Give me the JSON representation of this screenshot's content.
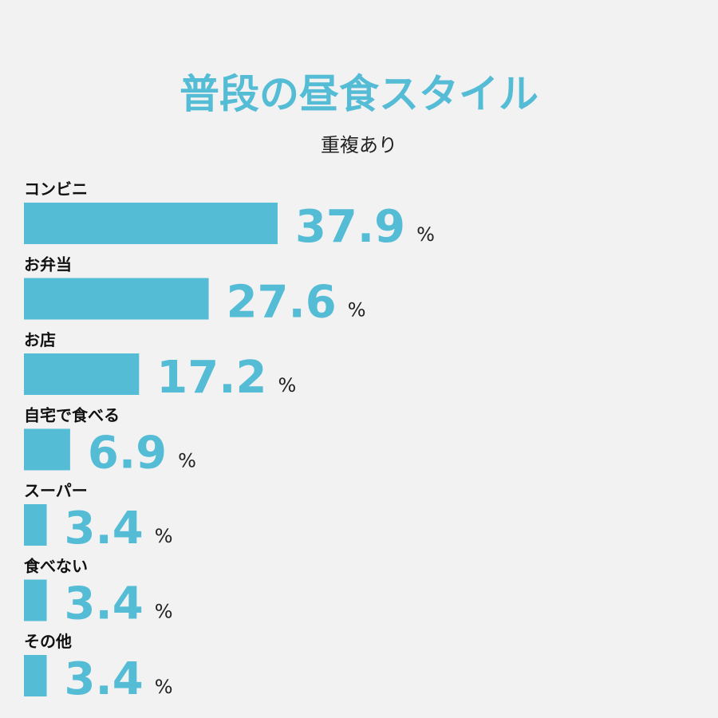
{
  "chart_data": {
    "type": "bar",
    "orientation": "horizontal",
    "title": "普段の昼食スタイル",
    "subtitle": "重複あり",
    "categories": [
      "コンビニ",
      "お弁当",
      "お店",
      "自宅で食べる",
      "スーパー",
      "食べない",
      "その他"
    ],
    "values": [
      37.9,
      27.6,
      17.2,
      6.9,
      3.4,
      3.4,
      3.4
    ],
    "unit": "%",
    "color": "#55bcd6"
  }
}
